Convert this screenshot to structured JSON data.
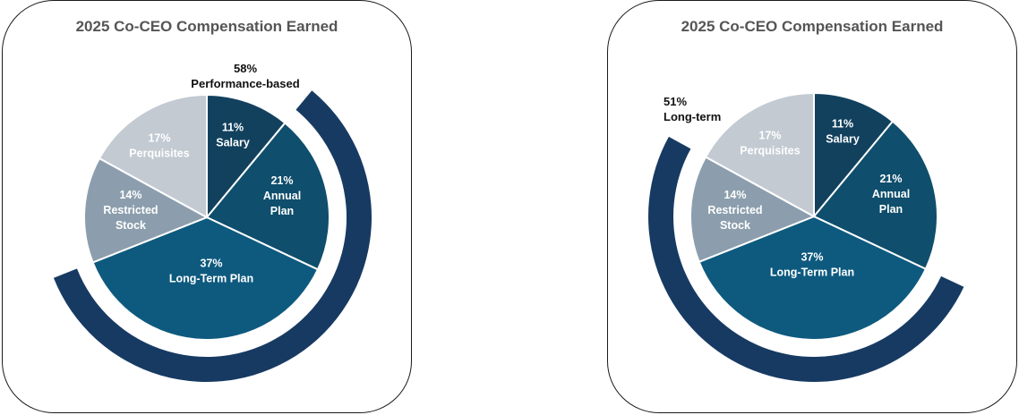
{
  "chart_data": [
    {
      "type": "pie",
      "title": "2025 Co-CEO Compensation Earned",
      "slices": [
        {
          "label_lines": [
            "11%",
            "Salary"
          ],
          "value": 11,
          "color": "#12415e",
          "text_color": "#ffffff"
        },
        {
          "label_lines": [
            "21%",
            "Annual",
            "Plan"
          ],
          "value": 21,
          "color": "#0f4e6c",
          "text_color": "#ffffff"
        },
        {
          "label_lines": [
            "37%",
            "Long-Term Plan"
          ],
          "value": 37,
          "color": "#0e5a7f",
          "text_color": "#ffffff"
        },
        {
          "label_lines": [
            "14%",
            "Restricted",
            "Stock"
          ],
          "value": 14,
          "color": "#8c9ead",
          "text_color": "#ffffff"
        },
        {
          "label_lines": [
            "17%",
            "Perquisites"
          ],
          "value": 17,
          "color": "#c3cad2",
          "text_color": "#ffffff"
        }
      ],
      "highlight_arc": {
        "percent_label": "58%",
        "label": "Performance-based",
        "color": "#173a62",
        "covers": [
          "21%",
          "37%"
        ]
      }
    },
    {
      "type": "pie",
      "title": "2025 Co-CEO Compensation Earned",
      "slices": [
        {
          "label_lines": [
            "11%",
            "Salary"
          ],
          "value": 11,
          "color": "#12415e",
          "text_color": "#ffffff"
        },
        {
          "label_lines": [
            "21%",
            "Annual",
            "Plan"
          ],
          "value": 21,
          "color": "#0f4e6c",
          "text_color": "#ffffff"
        },
        {
          "label_lines": [
            "37%",
            "Long-Term Plan"
          ],
          "value": 37,
          "color": "#0e5a7f",
          "text_color": "#ffffff"
        },
        {
          "label_lines": [
            "14%",
            "Restricted",
            "Stock"
          ],
          "value": 14,
          "color": "#8c9ead",
          "text_color": "#ffffff"
        },
        {
          "label_lines": [
            "17%",
            "Perquisites"
          ],
          "value": 17,
          "color": "#c3cad2",
          "text_color": "#ffffff"
        }
      ],
      "highlight_arc": {
        "percent_label": "51%",
        "label": "Long-term",
        "color": "#173a62",
        "covers": [
          "37%",
          "14%"
        ]
      }
    }
  ]
}
